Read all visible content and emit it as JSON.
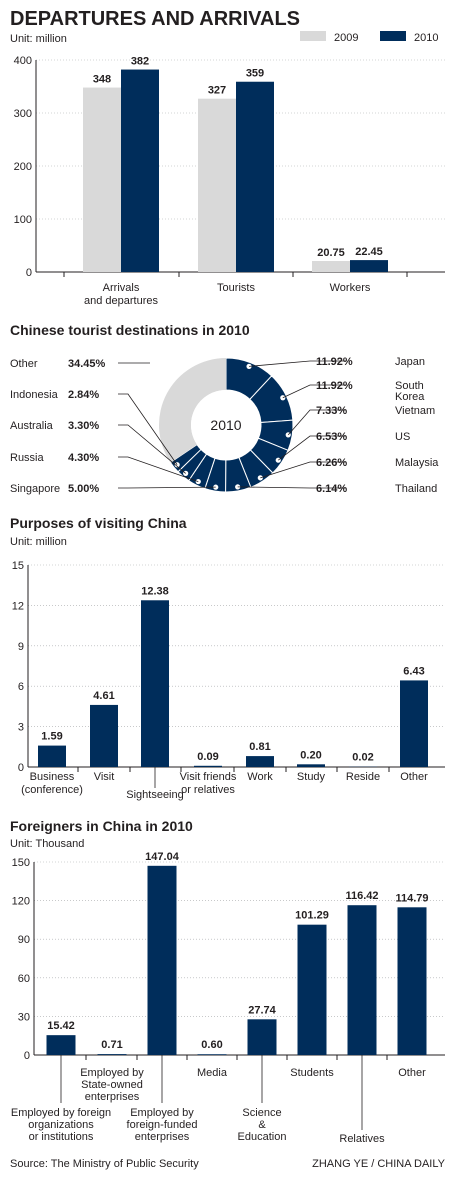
{
  "header": {
    "title": "DEPARTURES AND ARRIVALS",
    "unit": "Unit: million"
  },
  "colors": {
    "c2009": "#d9d9d9",
    "c2010": "#002d5b",
    "axis": "#231f20",
    "grid": "#a7a9ac"
  },
  "chart_data": [
    {
      "type": "bar",
      "title": "DEPARTURES AND ARRIVALS",
      "unit": "Unit: million",
      "categories": [
        [
          "Arrivals",
          "and departures"
        ],
        [
          "Tourists"
        ],
        [
          "Workers"
        ]
      ],
      "series": [
        {
          "name": "2009",
          "values": [
            348,
            327,
            20.75
          ],
          "labels": [
            "348",
            "327",
            "20.75"
          ]
        },
        {
          "name": "2010",
          "values": [
            382,
            359,
            22.45
          ],
          "labels": [
            "382",
            "359",
            "22.45"
          ]
        }
      ],
      "ylim": [
        0,
        400
      ],
      "yticks": [
        0,
        100,
        200,
        300,
        400
      ],
      "legend": "top-right",
      "grid": true
    },
    {
      "type": "pie",
      "title": "Chinese tourist destinations in 2010",
      "center_label": "2010",
      "slices": [
        {
          "name": "Japan",
          "value": 11.92,
          "label": "11.92%"
        },
        {
          "name": "South Korea",
          "value": 11.92,
          "label": "11.92%"
        },
        {
          "name": "Vietnam",
          "value": 7.33,
          "label": "7.33%"
        },
        {
          "name": "US",
          "value": 6.53,
          "label": "6.53%"
        },
        {
          "name": "Malaysia",
          "value": 6.26,
          "label": "6.26%"
        },
        {
          "name": "Thailand",
          "value": 6.14,
          "label": "6.14%"
        },
        {
          "name": "Singapore",
          "value": 5.0,
          "label": "5.00%"
        },
        {
          "name": "Russia",
          "value": 4.3,
          "label": "4.30%"
        },
        {
          "name": "Australia",
          "value": 3.3,
          "label": "3.30%"
        },
        {
          "name": "Indonesia",
          "value": 2.84,
          "label": "2.84%"
        },
        {
          "name": "Other",
          "value": 34.45,
          "label": "34.45%"
        }
      ]
    },
    {
      "type": "bar",
      "title": "Purposes of visiting China",
      "unit": "Unit: million",
      "categories": [
        [
          "Business",
          "(conference)"
        ],
        [
          "Visit"
        ],
        [
          "Sightseeing"
        ],
        [
          "Visit friends",
          "or relatives"
        ],
        [
          "Work"
        ],
        [
          "Study"
        ],
        [
          "Reside"
        ],
        [
          "Other"
        ]
      ],
      "values": [
        1.59,
        4.61,
        12.38,
        0.09,
        0.81,
        0.2,
        0.02,
        6.43
      ],
      "labels": [
        "1.59",
        "4.61",
        "12.38",
        "0.09",
        "0.81",
        "0.20",
        "0.02",
        "6.43"
      ],
      "ylim": [
        0,
        15
      ],
      "yticks": [
        0,
        3,
        6,
        9,
        12,
        15
      ],
      "grid": true
    },
    {
      "type": "bar",
      "title": "Foreigners in China in 2010",
      "unit": "Unit: Thousand",
      "categories": [
        [
          "Employed by foreign",
          "organizations",
          "or institutions"
        ],
        [
          "Employed by",
          "State-owned",
          "enterprises"
        ],
        [
          "Employed by",
          "foreign-funded",
          "enterprises"
        ],
        [
          "Media"
        ],
        [
          "Science",
          "&",
          "Education"
        ],
        [
          "Students"
        ],
        [
          "Relatives"
        ],
        [
          "Other"
        ]
      ],
      "values": [
        15.42,
        0.71,
        147.04,
        0.6,
        27.74,
        101.29,
        116.42,
        114.79
      ],
      "labels": [
        "15.42",
        "0.71",
        "147.04",
        "0.60",
        "27.74",
        "101.29",
        "116.42",
        "114.79"
      ],
      "ylim": [
        0,
        150
      ],
      "yticks": [
        0,
        30,
        60,
        90,
        120,
        150
      ],
      "grid": true
    }
  ],
  "footer": {
    "source": "Source: The Ministry of Public Security",
    "credit": "ZHANG YE / CHINA DAILY"
  }
}
